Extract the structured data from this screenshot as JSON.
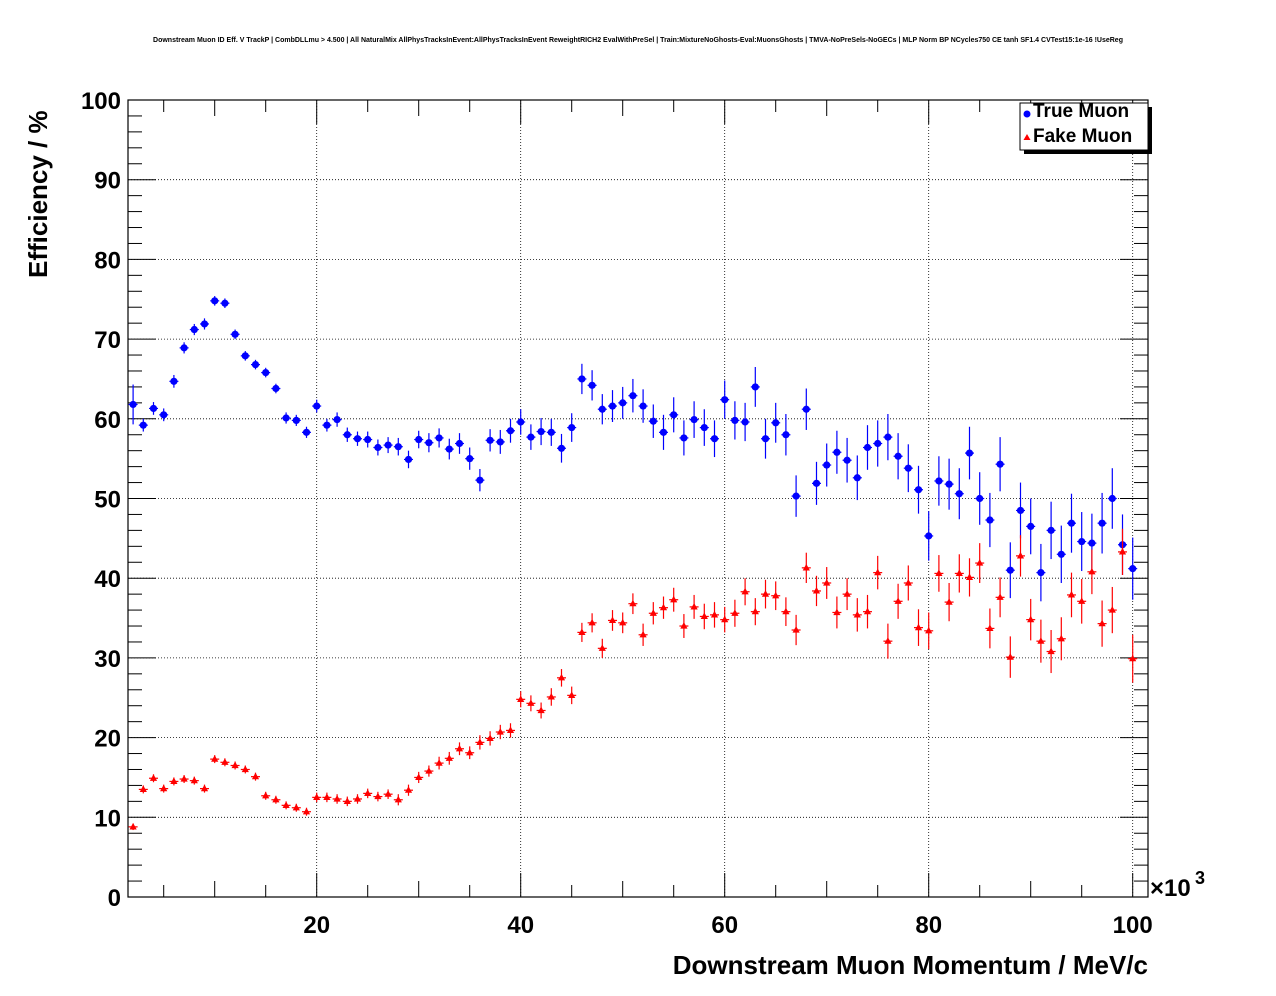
{
  "chart_data": {
    "type": "scatter",
    "title": "Downstream Muon ID Eff. V TrackP | CombDLLmu > 4.500 | All NaturalMix AllPhysTracksInEvent:AllPhysTracksInEvent ReweightRICH2 EvalWithPreSel | Train:MixtureNoGhosts-Eval:MuonsGhosts | TMVA-NoPreSels-NoGECs | MLP Norm BP NCycles750 CE tanh SF1.4 CVTest15:1e-16 !UseReg",
    "xlabel": "Downstream Muon Momentum / MeV/c",
    "ylabel": "Efficiency / %",
    "x_multiplier_label": "×10",
    "x_multiplier_exponent": "3",
    "xlim": [
      1.5,
      101.5
    ],
    "ylim": [
      0,
      100
    ],
    "x_ticks": [
      20,
      40,
      60,
      80,
      100
    ],
    "y_ticks": [
      0,
      10,
      20,
      30,
      40,
      50,
      60,
      70,
      80,
      90,
      100
    ],
    "grid": true,
    "legend_position": "top-right",
    "series": [
      {
        "name": "True Muon",
        "color": "#0000ff",
        "marker": "circle",
        "x": [
          2,
          3,
          4,
          5,
          6,
          7,
          8,
          9,
          10,
          11,
          12,
          13,
          14,
          15,
          16,
          17,
          18,
          19,
          20,
          21,
          22,
          23,
          24,
          25,
          26,
          27,
          28,
          29,
          30,
          31,
          32,
          33,
          34,
          35,
          36,
          37,
          38,
          39,
          40,
          41,
          42,
          43,
          44,
          45,
          46,
          47,
          48,
          49,
          50,
          51,
          52,
          53,
          54,
          55,
          56,
          57,
          58,
          59,
          60,
          61,
          62,
          63,
          64,
          65,
          66,
          67,
          68,
          69,
          70,
          71,
          72,
          73,
          74,
          75,
          76,
          77,
          78,
          79,
          80,
          81,
          82,
          83,
          84,
          85,
          86,
          87,
          88,
          89,
          90,
          91,
          92,
          93,
          94,
          95,
          96,
          97,
          98,
          99,
          100
        ],
        "y": [
          61.8,
          59.2,
          61.3,
          60.5,
          64.7,
          68.9,
          71.2,
          71.9,
          74.8,
          74.5,
          70.6,
          67.9,
          66.8,
          65.8,
          63.8,
          60.1,
          59.8,
          58.3,
          61.6,
          59.2,
          59.9,
          58.0,
          57.5,
          57.4,
          56.4,
          56.7,
          56.5,
          54.9,
          57.4,
          57.0,
          57.6,
          56.2,
          56.9,
          55.0,
          52.3,
          57.3,
          57.1,
          58.5,
          59.6,
          57.7,
          58.4,
          58.3,
          56.3,
          58.9,
          65.0,
          64.2,
          61.2,
          61.6,
          62.0,
          62.9,
          61.6,
          59.7,
          58.3,
          60.5,
          57.6,
          59.9,
          58.9,
          57.5,
          62.4,
          59.8,
          59.6,
          64.0,
          57.5,
          59.5,
          58.0,
          50.3,
          61.2,
          51.9,
          54.2,
          55.8,
          54.8,
          52.6,
          56.4,
          56.9,
          57.7,
          55.3,
          53.8,
          51.1,
          45.3,
          52.2,
          51.8,
          50.6,
          55.7,
          50.0,
          47.3,
          54.3,
          41.0,
          48.5,
          46.5,
          40.7,
          46.0,
          43.0,
          46.9,
          44.6,
          44.4,
          46.9,
          50.0,
          44.2,
          41.2
        ],
        "err": [
          2.5,
          0.8,
          0.8,
          0.8,
          0.8,
          0.7,
          0.7,
          0.7,
          0.6,
          0.6,
          0.6,
          0.6,
          0.6,
          0.6,
          0.6,
          0.7,
          0.7,
          0.7,
          0.8,
          0.8,
          0.9,
          0.9,
          0.9,
          1.0,
          1.0,
          1.0,
          1.1,
          1.1,
          1.1,
          1.2,
          1.2,
          1.3,
          1.3,
          1.4,
          1.4,
          1.4,
          1.5,
          1.5,
          1.6,
          1.6,
          1.7,
          1.7,
          1.8,
          1.8,
          1.9,
          1.9,
          1.9,
          2.0,
          2.0,
          2.1,
          2.1,
          2.1,
          2.2,
          2.2,
          2.2,
          2.3,
          2.3,
          2.3,
          2.4,
          2.4,
          2.4,
          2.5,
          2.5,
          2.5,
          2.6,
          2.6,
          2.6,
          2.7,
          2.7,
          2.7,
          2.8,
          2.8,
          2.8,
          2.9,
          2.9,
          2.9,
          3.0,
          3.0,
          3.1,
          3.1,
          3.2,
          3.2,
          3.3,
          3.3,
          3.4,
          3.4,
          3.5,
          3.5,
          3.5,
          3.6,
          3.6,
          3.6,
          3.7,
          3.7,
          3.7,
          3.8,
          3.8,
          3.8,
          3.9
        ]
      },
      {
        "name": "Fake Muon",
        "color": "#ff0000",
        "marker": "triangle",
        "x": [
          2,
          3,
          4,
          5,
          6,
          7,
          8,
          9,
          10,
          11,
          12,
          13,
          14,
          15,
          16,
          17,
          18,
          19,
          20,
          21,
          22,
          23,
          24,
          25,
          26,
          27,
          28,
          29,
          30,
          31,
          32,
          33,
          34,
          35,
          36,
          37,
          38,
          39,
          40,
          41,
          42,
          43,
          44,
          45,
          46,
          47,
          48,
          49,
          50,
          51,
          52,
          53,
          54,
          55,
          56,
          57,
          58,
          59,
          60,
          61,
          62,
          63,
          64,
          65,
          66,
          67,
          68,
          69,
          70,
          71,
          72,
          73,
          74,
          75,
          76,
          77,
          78,
          79,
          80,
          81,
          82,
          83,
          84,
          85,
          86,
          87,
          88,
          89,
          90,
          91,
          92,
          93,
          94,
          95,
          96,
          97,
          98,
          99,
          100
        ],
        "y": [
          8.8,
          13.5,
          14.9,
          13.6,
          14.5,
          14.8,
          14.6,
          13.6,
          17.3,
          16.9,
          16.5,
          16.0,
          15.1,
          12.7,
          12.2,
          11.5,
          11.2,
          10.7,
          12.5,
          12.5,
          12.3,
          12.0,
          12.3,
          13.0,
          12.6,
          12.9,
          12.2,
          13.4,
          15.0,
          15.8,
          16.8,
          17.4,
          18.6,
          18.1,
          19.4,
          19.9,
          20.7,
          20.9,
          24.8,
          24.3,
          23.4,
          25.1,
          27.5,
          25.3,
          33.2,
          34.4,
          31.2,
          34.7,
          34.4,
          36.8,
          32.9,
          35.6,
          36.3,
          37.3,
          34.0,
          36.4,
          35.2,
          35.4,
          34.8,
          35.6,
          38.3,
          35.8,
          38.0,
          37.8,
          35.8,
          33.5,
          41.3,
          38.4,
          39.4,
          35.7,
          38.0,
          35.4,
          35.8,
          40.7,
          32.1,
          37.1,
          39.4,
          33.8,
          33.4,
          40.6,
          37.0,
          40.6,
          40.1,
          41.9,
          33.7,
          37.6,
          30.1,
          42.8,
          34.8,
          32.1,
          30.8,
          32.4,
          37.9,
          37.1,
          40.8,
          34.3,
          36.0,
          43.3,
          29.9
        ],
        "err": [
          0.4,
          0.5,
          0.5,
          0.5,
          0.5,
          0.5,
          0.5,
          0.5,
          0.5,
          0.5,
          0.5,
          0.5,
          0.5,
          0.5,
          0.5,
          0.5,
          0.5,
          0.5,
          0.6,
          0.6,
          0.6,
          0.6,
          0.6,
          0.6,
          0.6,
          0.6,
          0.7,
          0.7,
          0.7,
          0.7,
          0.8,
          0.8,
          0.8,
          0.8,
          0.9,
          0.9,
          0.9,
          0.9,
          1.0,
          1.0,
          1.0,
          1.1,
          1.1,
          1.1,
          1.2,
          1.2,
          1.2,
          1.3,
          1.3,
          1.3,
          1.4,
          1.4,
          1.4,
          1.5,
          1.5,
          1.5,
          1.6,
          1.6,
          1.6,
          1.7,
          1.7,
          1.7,
          1.8,
          1.8,
          1.8,
          1.9,
          1.9,
          1.9,
          2.0,
          2.0,
          2.0,
          2.1,
          2.1,
          2.1,
          2.2,
          2.2,
          2.2,
          2.3,
          2.3,
          2.3,
          2.4,
          2.4,
          2.4,
          2.5,
          2.5,
          2.5,
          2.6,
          2.6,
          2.6,
          2.7,
          2.7,
          2.7,
          2.8,
          2.8,
          2.8,
          2.9,
          2.9,
          2.9,
          3.0
        ]
      }
    ]
  }
}
